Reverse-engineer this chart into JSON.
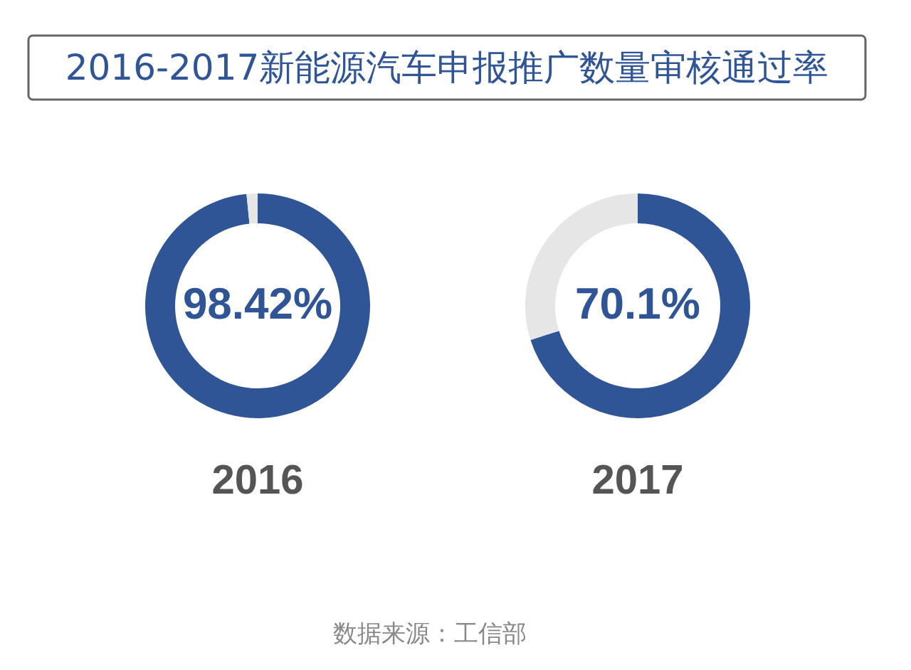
{
  "chart_data": [
    {
      "type": "donut",
      "title": "2016-2017新能源汽车申报推广数量审核通过率",
      "categories": [
        null,
        null
      ],
      "values": [
        98.42,
        1.58
      ],
      "colors": [
        "#2f5597",
        "#e6e6e6"
      ],
      "value_labels": [
        "98.42%",
        null
      ],
      "xlabel": "2016"
    },
    {
      "type": "donut",
      "categories": [
        null,
        null
      ],
      "values": [
        70.1,
        29.9
      ],
      "colors": [
        "#2f5597",
        "#e6e6e6"
      ],
      "value_labels": [
        "70.1%",
        null
      ],
      "xlabel": "2017",
      "annotations": [
        "数据来源：工信部"
      ]
    }
  ]
}
